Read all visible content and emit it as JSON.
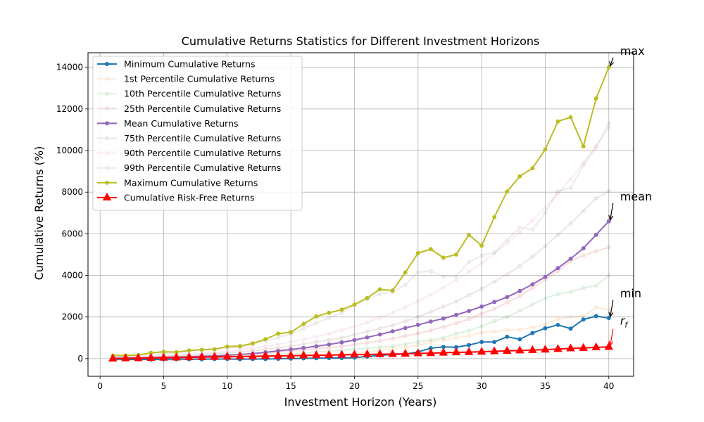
{
  "chart_data": {
    "type": "line",
    "title": "Cumulative Returns Statistics for Different Investment Horizons",
    "xlabel": "Investment Horizon (Years)",
    "ylabel": "Cumulative Returns (%)",
    "xlim": [
      -0.95,
      41.95
    ],
    "ylim": [
      -850,
      14700
    ],
    "xticks": [
      0,
      5,
      10,
      15,
      20,
      25,
      30,
      35,
      40
    ],
    "yticks": [
      0,
      2000,
      4000,
      6000,
      8000,
      10000,
      12000,
      14000
    ],
    "grid": true,
    "legend_position": "top-left",
    "x": [
      1,
      2,
      3,
      4,
      5,
      6,
      7,
      8,
      9,
      10,
      11,
      12,
      13,
      14,
      15,
      16,
      17,
      18,
      19,
      20,
      21,
      22,
      23,
      24,
      25,
      26,
      27,
      28,
      29,
      30,
      31,
      32,
      33,
      34,
      35,
      36,
      37,
      38,
      39,
      40
    ],
    "series": [
      {
        "name": "Minimum Cumulative Returns",
        "color": "#1f77b4",
        "alpha": 1,
        "width": 2,
        "marker": "circle",
        "emphasis": true,
        "values": [
          -30,
          -40,
          -35,
          -45,
          -35,
          -30,
          -25,
          -30,
          -20,
          -20,
          -30,
          -20,
          -20,
          -10,
          0,
          10,
          20,
          30,
          30,
          50,
          100,
          150,
          200,
          220,
          320,
          500,
          560,
          550,
          650,
          800,
          800,
          1050,
          930,
          1230,
          1460,
          1620,
          1440,
          1880,
          2040,
          1950
        ]
      },
      {
        "name": "1st Percentile Cumulative Returns",
        "color": "#ff7f0e",
        "alpha": 0.15,
        "width": 2,
        "marker": "circle",
        "emphasis": false,
        "values": [
          0,
          0,
          10,
          10,
          20,
          20,
          30,
          40,
          50,
          60,
          70,
          80,
          90,
          100,
          120,
          140,
          160,
          180,
          200,
          250,
          320,
          400,
          500,
          550,
          650,
          800,
          900,
          1000,
          1100,
          1250,
          1300,
          1380,
          1400,
          1500,
          1650,
          1900,
          2000,
          2050,
          2450,
          2350
        ]
      },
      {
        "name": "10th Percentile Cumulative Returns",
        "color": "#2ca02c",
        "alpha": 0.15,
        "width": 2,
        "marker": "circle",
        "emphasis": false,
        "values": [
          20,
          20,
          30,
          40,
          50,
          60,
          70,
          80,
          90,
          110,
          130,
          150,
          180,
          210,
          240,
          280,
          320,
          360,
          400,
          450,
          500,
          550,
          600,
          700,
          800,
          900,
          1000,
          1200,
          1350,
          1550,
          1800,
          2000,
          2300,
          2600,
          2900,
          3100,
          3200,
          3400,
          3500,
          4000
        ]
      },
      {
        "name": "25th Percentile Cumulative Returns",
        "color": "#d62728",
        "alpha": 0.15,
        "width": 2,
        "marker": "circle",
        "emphasis": false,
        "values": [
          30,
          40,
          50,
          60,
          70,
          90,
          100,
          120,
          140,
          170,
          200,
          230,
          270,
          310,
          360,
          410,
          470,
          530,
          600,
          680,
          760,
          850,
          960,
          1080,
          1210,
          1360,
          1520,
          1700,
          1900,
          2150,
          2400,
          2700,
          3000,
          3400,
          3800,
          4200,
          4700,
          4950,
          5150,
          5350
        ]
      },
      {
        "name": "Mean Cumulative Returns",
        "color": "#9467bd",
        "alpha": 1,
        "width": 2,
        "marker": "circle",
        "emphasis": true,
        "values": [
          10,
          20,
          30,
          40,
          60,
          70,
          90,
          110,
          130,
          160,
          200,
          240,
          300,
          370,
          440,
          510,
          590,
          680,
          780,
          890,
          1020,
          1160,
          1310,
          1470,
          1620,
          1780,
          1930,
          2100,
          2290,
          2500,
          2720,
          2960,
          3250,
          3570,
          3930,
          4350,
          4800,
          5300,
          5950,
          6600
        ]
      },
      {
        "name": "75th Percentile Cumulative Returns",
        "color": "#8c564b",
        "alpha": 0.15,
        "width": 2,
        "marker": "circle",
        "emphasis": false,
        "values": [
          40,
          50,
          70,
          90,
          110,
          130,
          160,
          190,
          230,
          270,
          320,
          380,
          450,
          520,
          600,
          700,
          800,
          900,
          1000,
          1150,
          1300,
          1450,
          1600,
          1800,
          2000,
          2250,
          2500,
          2750,
          3050,
          3350,
          3700,
          4050,
          4450,
          4900,
          5400,
          5950,
          6500,
          7100,
          7700,
          8050
        ]
      },
      {
        "name": "90th Percentile Cumulative Returns",
        "color": "#e377c2",
        "alpha": 0.15,
        "width": 2,
        "marker": "circle",
        "emphasis": false,
        "values": [
          60,
          70,
          90,
          110,
          140,
          170,
          200,
          240,
          290,
          350,
          420,
          500,
          590,
          690,
          800,
          920,
          1050,
          1200,
          1360,
          1540,
          1740,
          1960,
          2200,
          2470,
          2760,
          3080,
          3420,
          3780,
          4170,
          4590,
          5050,
          5540,
          6070,
          6640,
          7260,
          7920,
          8630,
          9400,
          10220,
          11100
        ]
      },
      {
        "name": "99th Percentile Cumulative Returns",
        "color": "#7f7f7f",
        "alpha": 0.15,
        "width": 2,
        "marker": "circle",
        "emphasis": false,
        "values": [
          100,
          120,
          150,
          200,
          250,
          300,
          350,
          400,
          450,
          500,
          550,
          700,
          850,
          1000,
          1200,
          1450,
          1700,
          1950,
          2200,
          2550,
          2850,
          3100,
          3200,
          3550,
          4150,
          4200,
          3950,
          3950,
          4650,
          4950,
          5100,
          5700,
          6300,
          6200,
          7000,
          8050,
          8200,
          9300,
          10150,
          11300
        ]
      },
      {
        "name": "Maximum Cumulative Returns",
        "color": "#bcbd22",
        "alpha": 1,
        "width": 2,
        "marker": "circle",
        "emphasis": true,
        "values": [
          150,
          150,
          170,
          280,
          330,
          310,
          390,
          430,
          450,
          580,
          600,
          730,
          930,
          1200,
          1270,
          1660,
          2030,
          2200,
          2350,
          2600,
          2910,
          3330,
          3270,
          4140,
          5070,
          5260,
          4850,
          5000,
          5950,
          5430,
          6800,
          8030,
          8760,
          9150,
          10050,
          11400,
          11600,
          10200,
          12500,
          14000
        ]
      },
      {
        "name": "Cumulative Risk-Free Returns",
        "color": "#ff0000",
        "alpha": 1,
        "width": 2,
        "marker": "triangle",
        "emphasis": true,
        "values": [
          0,
          10,
          20,
          30,
          40,
          50,
          60,
          70,
          80,
          90,
          100,
          110,
          120,
          130,
          140,
          150,
          160,
          170,
          180,
          190,
          200,
          210,
          220,
          230,
          250,
          260,
          280,
          300,
          310,
          330,
          350,
          370,
          390,
          410,
          430,
          460,
          490,
          510,
          540,
          560
        ]
      }
    ],
    "annotations": [
      {
        "text": "max",
        "x": 40,
        "y": 14000,
        "text_dx": 1,
        "text_dy": 600
      },
      {
        "text": "mean",
        "x": 40,
        "y": 6600,
        "text_dx": 1,
        "text_dy": 1000
      },
      {
        "text": "min",
        "x": 40,
        "y": 1950,
        "text_dx": 1,
        "text_dy": 1000
      },
      {
        "text": "rf",
        "x": 40,
        "y": 560,
        "text_dx": 1,
        "text_dy": 1000,
        "math": true
      }
    ]
  }
}
